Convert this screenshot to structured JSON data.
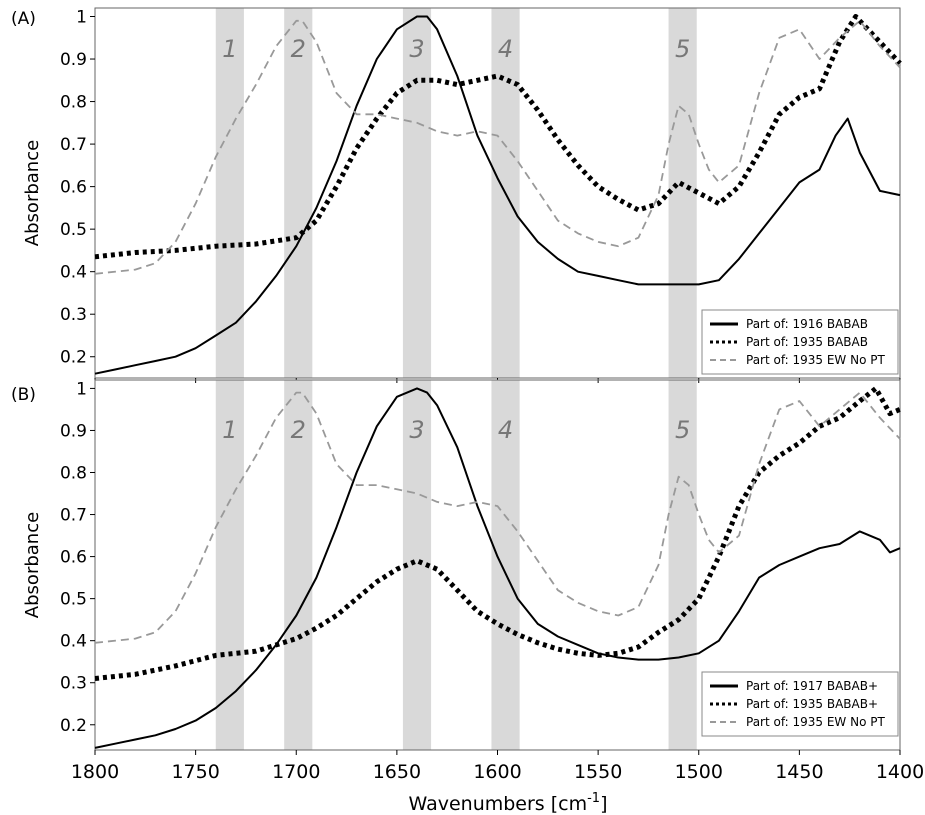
{
  "figure": {
    "xlabel_main": "Wavenumbers [cm",
    "xlabel_sup": "-1",
    "xlabel_close": "]"
  },
  "chart_data": [
    {
      "type": "line",
      "panel_label": "(A)",
      "ylabel": "Absorbance",
      "xlim": [
        1800,
        1400
      ],
      "ylim": [
        0.15,
        1.02
      ],
      "x_ticks": [
        1800,
        1750,
        1700,
        1650,
        1600,
        1550,
        1500,
        1450,
        1400
      ],
      "y_ticks": [
        0.2,
        0.3,
        0.4,
        0.5,
        0.6,
        0.7,
        0.8,
        0.9,
        1
      ],
      "y_tick_labels": [
        "0.2",
        "0.3",
        "0.4",
        "0.5",
        "0.6",
        "0.7",
        "0.8",
        "0.9",
        "1"
      ],
      "bands": [
        {
          "label": "1",
          "x1": 1740,
          "x2": 1726
        },
        {
          "label": "2",
          "x1": 1706,
          "x2": 1692
        },
        {
          "label": "3",
          "x1": 1647,
          "x2": 1633
        },
        {
          "label": "4",
          "x1": 1603,
          "x2": 1589
        },
        {
          "label": "5",
          "x1": 1515,
          "x2": 1501
        }
      ],
      "legend_position": "bottom-right",
      "series": [
        {
          "name": "Part of: 1916 BABAB",
          "style": "solid",
          "color": "#000000",
          "x": [
            1800,
            1790,
            1780,
            1770,
            1760,
            1750,
            1740,
            1730,
            1720,
            1710,
            1700,
            1690,
            1680,
            1670,
            1660,
            1650,
            1640,
            1635,
            1630,
            1620,
            1610,
            1600,
            1590,
            1580,
            1570,
            1560,
            1550,
            1540,
            1530,
            1520,
            1510,
            1500,
            1490,
            1480,
            1470,
            1460,
            1450,
            1440,
            1432,
            1426,
            1420,
            1410,
            1400
          ],
          "y": [
            0.16,
            0.17,
            0.18,
            0.19,
            0.2,
            0.22,
            0.25,
            0.28,
            0.33,
            0.39,
            0.46,
            0.55,
            0.66,
            0.79,
            0.9,
            0.97,
            1.0,
            1.0,
            0.97,
            0.86,
            0.72,
            0.62,
            0.53,
            0.47,
            0.43,
            0.4,
            0.39,
            0.38,
            0.37,
            0.37,
            0.37,
            0.37,
            0.38,
            0.43,
            0.49,
            0.55,
            0.61,
            0.64,
            0.72,
            0.76,
            0.68,
            0.59,
            0.58
          ]
        },
        {
          "name": "Part of: 1935 BABAB",
          "style": "dotted",
          "color": "#000000",
          "x": [
            1800,
            1780,
            1760,
            1740,
            1720,
            1700,
            1690,
            1680,
            1670,
            1660,
            1650,
            1640,
            1630,
            1620,
            1610,
            1600,
            1590,
            1580,
            1570,
            1560,
            1550,
            1540,
            1530,
            1520,
            1510,
            1500,
            1490,
            1480,
            1470,
            1460,
            1450,
            1440,
            1430,
            1422,
            1410,
            1400
          ],
          "y": [
            0.435,
            0.445,
            0.45,
            0.46,
            0.465,
            0.48,
            0.52,
            0.6,
            0.69,
            0.76,
            0.82,
            0.85,
            0.85,
            0.84,
            0.85,
            0.86,
            0.84,
            0.78,
            0.71,
            0.65,
            0.6,
            0.57,
            0.545,
            0.56,
            0.61,
            0.585,
            0.56,
            0.6,
            0.68,
            0.77,
            0.81,
            0.83,
            0.94,
            1.0,
            0.94,
            0.89
          ]
        },
        {
          "name": "Part of: 1935 EW No PT",
          "style": "dashed",
          "color": "#999999",
          "x": [
            1800,
            1780,
            1770,
            1760,
            1750,
            1740,
            1730,
            1720,
            1710,
            1700,
            1697,
            1690,
            1680,
            1670,
            1660,
            1650,
            1640,
            1630,
            1620,
            1610,
            1600,
            1590,
            1580,
            1570,
            1560,
            1550,
            1540,
            1530,
            1520,
            1515,
            1510,
            1505,
            1500,
            1495,
            1490,
            1480,
            1470,
            1460,
            1450,
            1440,
            1430,
            1420,
            1410,
            1400
          ],
          "y": [
            0.395,
            0.405,
            0.42,
            0.47,
            0.56,
            0.67,
            0.76,
            0.84,
            0.93,
            0.99,
            0.99,
            0.94,
            0.82,
            0.77,
            0.77,
            0.76,
            0.75,
            0.73,
            0.72,
            0.73,
            0.72,
            0.66,
            0.59,
            0.52,
            0.49,
            0.47,
            0.46,
            0.48,
            0.58,
            0.7,
            0.79,
            0.77,
            0.7,
            0.64,
            0.61,
            0.65,
            0.82,
            0.95,
            0.97,
            0.9,
            0.95,
            0.99,
            0.93,
            0.88
          ]
        }
      ]
    },
    {
      "type": "line",
      "panel_label": "(B)",
      "ylabel": "Absorbance",
      "xlim": [
        1800,
        1400
      ],
      "ylim": [
        0.14,
        1.02
      ],
      "x_ticks": [
        1800,
        1750,
        1700,
        1650,
        1600,
        1550,
        1500,
        1450,
        1400
      ],
      "x_tick_labels": [
        "1800",
        "1750",
        "1700",
        "1650",
        "1600",
        "1550",
        "1500",
        "1450",
        "1400"
      ],
      "y_ticks": [
        0.2,
        0.3,
        0.4,
        0.5,
        0.6,
        0.7,
        0.8,
        0.9,
        1
      ],
      "y_tick_labels": [
        "0.2",
        "0.3",
        "0.4",
        "0.5",
        "0.6",
        "0.7",
        "0.8",
        "0.9",
        "1"
      ],
      "bands": [
        {
          "label": "1",
          "x1": 1740,
          "x2": 1726
        },
        {
          "label": "2",
          "x1": 1706,
          "x2": 1692
        },
        {
          "label": "3",
          "x1": 1647,
          "x2": 1633
        },
        {
          "label": "4",
          "x1": 1603,
          "x2": 1589
        },
        {
          "label": "5",
          "x1": 1515,
          "x2": 1501
        }
      ],
      "legend_position": "bottom-right",
      "series": [
        {
          "name": "Part of: 1917 BABAB+",
          "style": "solid",
          "color": "#000000",
          "x": [
            1800,
            1790,
            1780,
            1770,
            1760,
            1750,
            1740,
            1730,
            1720,
            1710,
            1700,
            1690,
            1680,
            1670,
            1660,
            1650,
            1640,
            1635,
            1630,
            1620,
            1610,
            1600,
            1590,
            1580,
            1570,
            1560,
            1550,
            1540,
            1530,
            1520,
            1510,
            1500,
            1490,
            1480,
            1470,
            1460,
            1450,
            1440,
            1430,
            1420,
            1410,
            1405,
            1400
          ],
          "y": [
            0.145,
            0.155,
            0.165,
            0.175,
            0.19,
            0.21,
            0.24,
            0.28,
            0.33,
            0.39,
            0.46,
            0.55,
            0.67,
            0.8,
            0.91,
            0.98,
            1.0,
            0.99,
            0.96,
            0.86,
            0.72,
            0.6,
            0.5,
            0.44,
            0.41,
            0.39,
            0.37,
            0.36,
            0.355,
            0.355,
            0.36,
            0.37,
            0.4,
            0.47,
            0.55,
            0.58,
            0.6,
            0.62,
            0.63,
            0.66,
            0.64,
            0.61,
            0.62
          ]
        },
        {
          "name": "Part of: 1935 BABAB+",
          "style": "dotted",
          "color": "#000000",
          "x": [
            1800,
            1780,
            1760,
            1740,
            1720,
            1700,
            1690,
            1680,
            1670,
            1660,
            1650,
            1640,
            1630,
            1620,
            1610,
            1600,
            1590,
            1580,
            1570,
            1560,
            1550,
            1540,
            1530,
            1520,
            1510,
            1500,
            1490,
            1480,
            1470,
            1460,
            1450,
            1440,
            1430,
            1420,
            1412,
            1405,
            1400
          ],
          "y": [
            0.31,
            0.32,
            0.34,
            0.365,
            0.375,
            0.405,
            0.43,
            0.46,
            0.5,
            0.54,
            0.57,
            0.59,
            0.57,
            0.52,
            0.47,
            0.44,
            0.415,
            0.395,
            0.38,
            0.37,
            0.365,
            0.37,
            0.385,
            0.42,
            0.45,
            0.5,
            0.6,
            0.72,
            0.8,
            0.84,
            0.87,
            0.91,
            0.93,
            0.97,
            1.0,
            0.94,
            0.95
          ]
        },
        {
          "name": "Part of: 1935 EW No PT",
          "style": "dashed",
          "color": "#999999",
          "x": [
            1800,
            1780,
            1770,
            1760,
            1750,
            1740,
            1730,
            1720,
            1710,
            1700,
            1697,
            1690,
            1680,
            1670,
            1660,
            1650,
            1640,
            1630,
            1620,
            1610,
            1600,
            1590,
            1580,
            1570,
            1560,
            1550,
            1540,
            1530,
            1520,
            1515,
            1510,
            1505,
            1500,
            1495,
            1490,
            1480,
            1470,
            1460,
            1450,
            1440,
            1430,
            1420,
            1410,
            1400
          ],
          "y": [
            0.395,
            0.405,
            0.42,
            0.47,
            0.56,
            0.67,
            0.76,
            0.84,
            0.93,
            0.99,
            0.99,
            0.94,
            0.82,
            0.77,
            0.77,
            0.76,
            0.75,
            0.73,
            0.72,
            0.73,
            0.72,
            0.66,
            0.59,
            0.52,
            0.49,
            0.47,
            0.46,
            0.48,
            0.58,
            0.7,
            0.79,
            0.77,
            0.7,
            0.64,
            0.61,
            0.65,
            0.82,
            0.95,
            0.97,
            0.91,
            0.95,
            0.99,
            0.93,
            0.88
          ]
        }
      ]
    }
  ]
}
